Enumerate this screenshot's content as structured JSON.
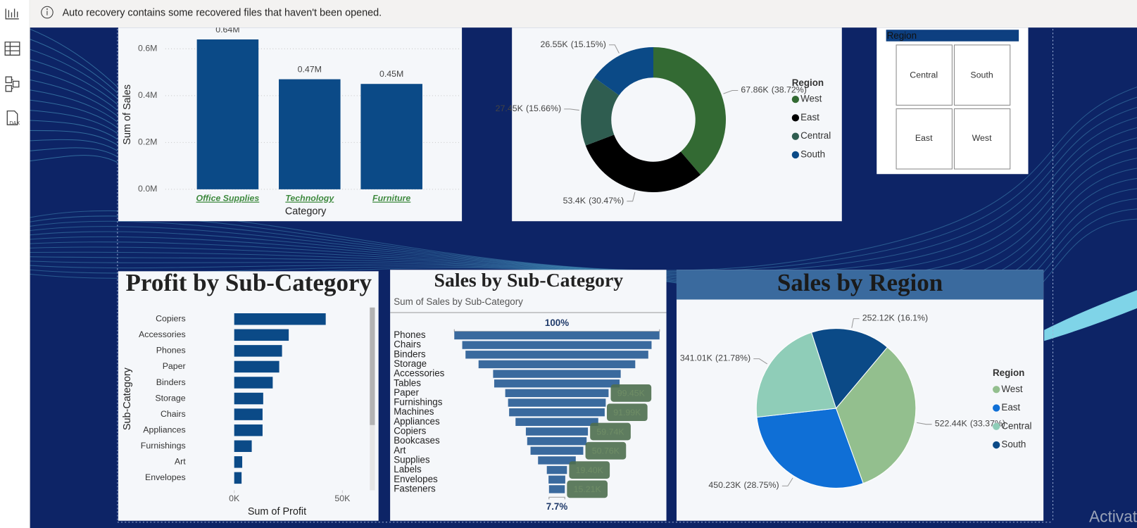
{
  "notification": "Auto recovery contains some recovered files that haven't been opened.",
  "sidebar": {
    "dax_label": "DAX"
  },
  "slicer": {
    "title": "Region",
    "items": [
      "Central",
      "South",
      "East",
      "West"
    ]
  },
  "watermark": "Activat",
  "chart_data": [
    {
      "type": "bar",
      "categories": [
        "Office Supplies",
        "Technology",
        "Furniture"
      ],
      "values": [
        0.64,
        0.47,
        0.45
      ],
      "value_labels": [
        "0.64M",
        "0.47M",
        "0.45M"
      ],
      "color": "#0b4a87",
      "category_color": "#3f8a3f",
      "ylim": [
        0,
        0.7
      ],
      "yticks": [
        {
          "value": 0,
          "label": "0.0M"
        },
        {
          "value": 0.2,
          "label": "0.2M"
        },
        {
          "value": 0.4,
          "label": "0.4M"
        },
        {
          "value": 0.6,
          "label": "0.6M"
        }
      ],
      "x_label": "Category",
      "y_label": "Sum of Sales",
      "grid": true
    },
    {
      "type": "donut",
      "legend_title": "Region",
      "legend": "right",
      "categories": [
        "West",
        "East",
        "Central",
        "South"
      ],
      "values": [
        67.86,
        53.4,
        27.45,
        26.55
      ],
      "value_labels": [
        "67.86K",
        "53.4K",
        "27.45K",
        "26.55K"
      ],
      "percent_labels": [
        "(38.72%)",
        "(30.47%)",
        "(15.66%)",
        "(15.15%)"
      ],
      "colors": [
        "#336a33",
        "#000000",
        "#2f5d50",
        "#0b4a87"
      ]
    },
    {
      "type": "bar",
      "horizontal": true,
      "title": "Profit by Sub-Category",
      "categories": [
        "Copiers",
        "Accessories",
        "Phones",
        "Paper",
        "Binders",
        "Storage",
        "Chairs",
        "Appliances",
        "Furnishings",
        "Art",
        "Envelopes"
      ],
      "values": [
        42.3,
        25.2,
        22.1,
        20.8,
        17.8,
        13.4,
        13.1,
        13.1,
        8.1,
        3.7,
        3.4
      ],
      "color": "#0b4a87",
      "xlim": [
        0,
        60
      ],
      "xticks": [
        {
          "value": 0,
          "label": "0K"
        },
        {
          "value": 50,
          "label": "50K"
        }
      ],
      "x_label": "Sum of Profit",
      "y_label": "Sub-Category"
    },
    {
      "type": "funnel",
      "title": "Sales by Sub-Category",
      "subtitle": "Sum of Sales by Sub-Category",
      "categories": [
        "Phones",
        "Chairs",
        "Binders",
        "Storage",
        "Accessories",
        "Tables",
        "Paper",
        "Furnishings",
        "Machines",
        "Appliances",
        "Copiers",
        "Bookcases",
        "Art",
        "Supplies",
        "Labels",
        "Envelopes",
        "Fasteners"
      ],
      "values": [
        197.5,
        182.2,
        175.9,
        150.8,
        122.8,
        120.7,
        99.45,
        94,
        91.99,
        79.6,
        59.74,
        57.2,
        50.76,
        36.3,
        19.4,
        16.1,
        15.21
      ],
      "value_labels": [
        null,
        null,
        null,
        null,
        null,
        null,
        "99.45K",
        null,
        "91.99K",
        null,
        "59.74K",
        null,
        "50.76K",
        null,
        "19.40K",
        null,
        "15.21K"
      ],
      "top_label": "100%",
      "bottom_label": "7.7%",
      "color": "#3a6a9e",
      "label_color": "#4e6e4e"
    },
    {
      "type": "pie",
      "title": "Sales by Region",
      "legend_title": "Region",
      "legend": "right",
      "categories": [
        "West",
        "East",
        "Central",
        "South"
      ],
      "values": [
        522.44,
        450.23,
        341.01,
        252.12
      ],
      "value_labels": [
        "522.44K",
        "450.23K",
        "341.01K",
        "252.12K"
      ],
      "percent_labels": [
        "(33.37%)",
        "(28.75%)",
        "(21.78%)",
        "(16.1%)"
      ],
      "colors": [
        "#93bf8e",
        "#0f6fd6",
        "#8fcdb8",
        "#0b4a87"
      ]
    }
  ]
}
